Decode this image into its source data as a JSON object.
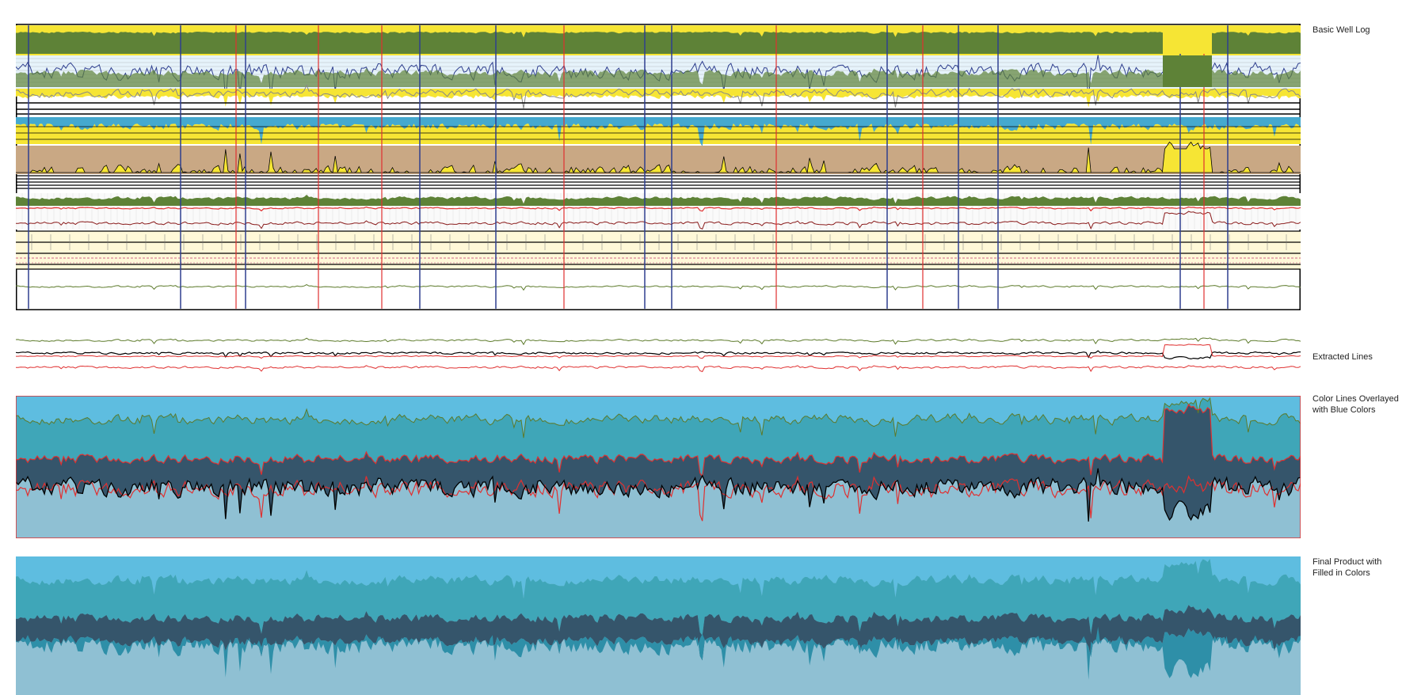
{
  "labels": {
    "well_log": "Basic Well Log",
    "extracted": "Extracted Lines",
    "overlay": "Color Lines Overlayed with Blue Colors",
    "final": "Final Product with Filled in Colors"
  },
  "colors": {
    "olive_fill": "#5e8237",
    "yellow_fill": "#f6e534",
    "tan_fill": "#c9a884",
    "navy_line": "#2f3f8f",
    "cyan_fill": "#45a9cf",
    "red_line": "#e03030",
    "green_line": "#5c7a2a",
    "sky_blue": "#5ebde0",
    "teal": "#3fa6b8",
    "slate": "#35556b",
    "steel_teal": "#2e8fa8",
    "pale_blue": "#8fc0d3",
    "track_cream": "#fff8d8"
  }
}
